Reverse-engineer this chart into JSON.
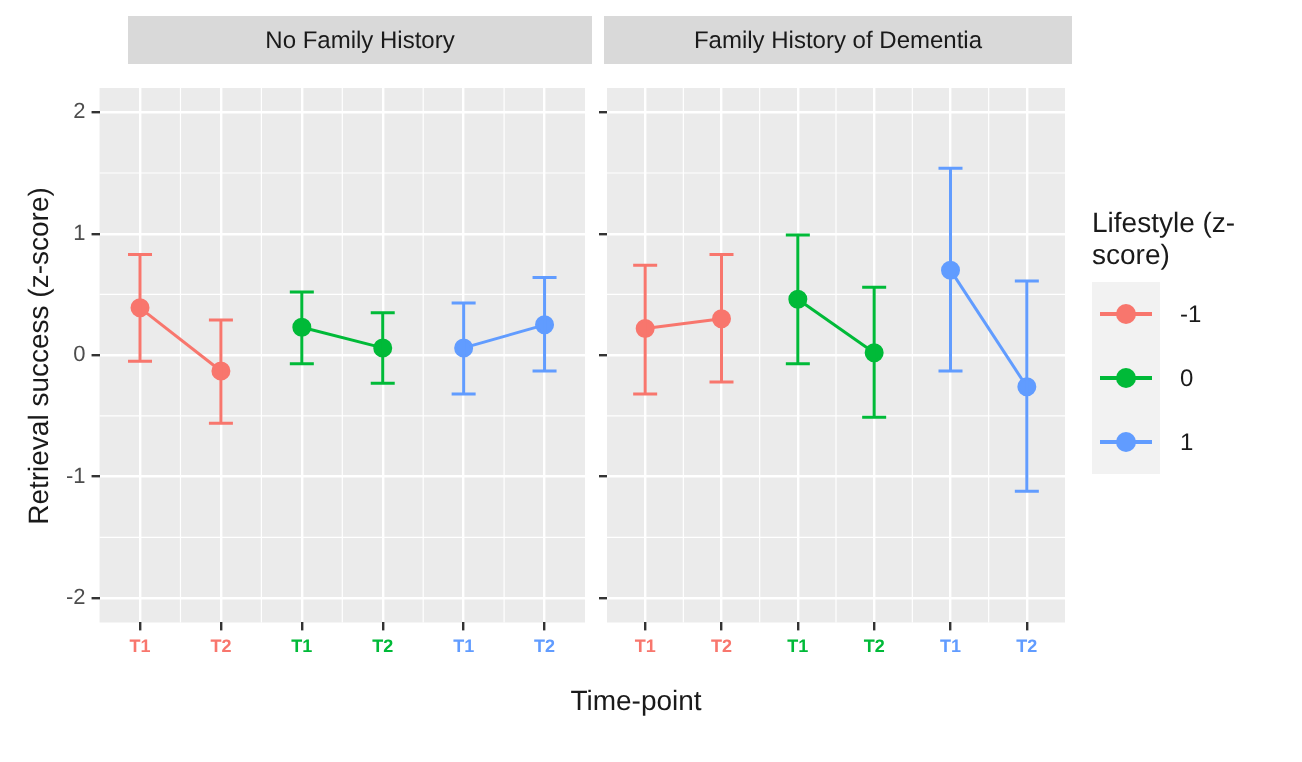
{
  "chart_data": [
    {
      "type": "line",
      "title": "No Family History",
      "ylabel": "Retrieval success (z-score)",
      "categories": [
        "T1",
        "T2",
        "T1",
        "T2",
        "T1",
        "T2"
      ],
      "ylim": [
        -2.2,
        2.2
      ],
      "yticks": [
        -2,
        -1,
        0,
        1,
        2
      ],
      "grid": true,
      "marker": "circle",
      "line_style": "solid",
      "legend": "right",
      "legend_title": "Lifestyle (z-score)",
      "series": [
        {
          "name": "-1",
          "color": "#f8766d",
          "values": [
            0.39,
            -0.13,
            null,
            null,
            null,
            null
          ],
          "errors": [
            [
              -0.05,
              0.83
            ],
            [
              -0.56,
              0.29
            ],
            null,
            null,
            null,
            null
          ]
        },
        {
          "name": "0",
          "color": "#00ba38",
          "values": [
            null,
            null,
            0.23,
            0.06,
            null,
            null
          ],
          "errors": [
            null,
            null,
            [
              -0.07,
              0.52
            ],
            [
              -0.23,
              0.35
            ],
            null,
            null
          ]
        },
        {
          "name": "1",
          "color": "#619cff",
          "values": [
            null,
            null,
            null,
            null,
            0.06,
            0.25
          ],
          "errors": [
            null,
            null,
            null,
            null,
            [
              -0.32,
              0.43
            ],
            [
              -0.13,
              0.64
            ]
          ]
        }
      ]
    },
    {
      "type": "line",
      "title": "Family History of Dementia",
      "xlabel": "Time-point",
      "categories": [
        "T1",
        "T2",
        "T1",
        "T2",
        "T1",
        "T2"
      ],
      "ylim": [
        -2.2,
        2.2
      ],
      "yticks": [
        -2,
        -1,
        0,
        1,
        2
      ],
      "tick_labels": "x",
      "grid": true,
      "marker": "circle",
      "line_style": "solid",
      "series": [
        {
          "name": "-1",
          "color": "#f8766d",
          "values": [
            0.22,
            0.3,
            null,
            null,
            null,
            null
          ],
          "errors": [
            [
              -0.32,
              0.74
            ],
            [
              -0.22,
              0.83
            ],
            null,
            null,
            null,
            null
          ]
        },
        {
          "name": "0",
          "color": "#00ba38",
          "values": [
            null,
            null,
            0.46,
            0.02,
            null,
            null
          ],
          "errors": [
            null,
            null,
            [
              -0.07,
              0.99
            ],
            [
              -0.51,
              0.56
            ],
            null,
            null
          ]
        },
        {
          "name": "1",
          "color": "#619cff",
          "values": [
            null,
            null,
            null,
            null,
            0.7,
            -0.26
          ],
          "errors": [
            null,
            null,
            null,
            null,
            [
              -0.13,
              1.54
            ],
            [
              -1.12,
              0.61
            ]
          ]
        }
      ]
    }
  ]
}
